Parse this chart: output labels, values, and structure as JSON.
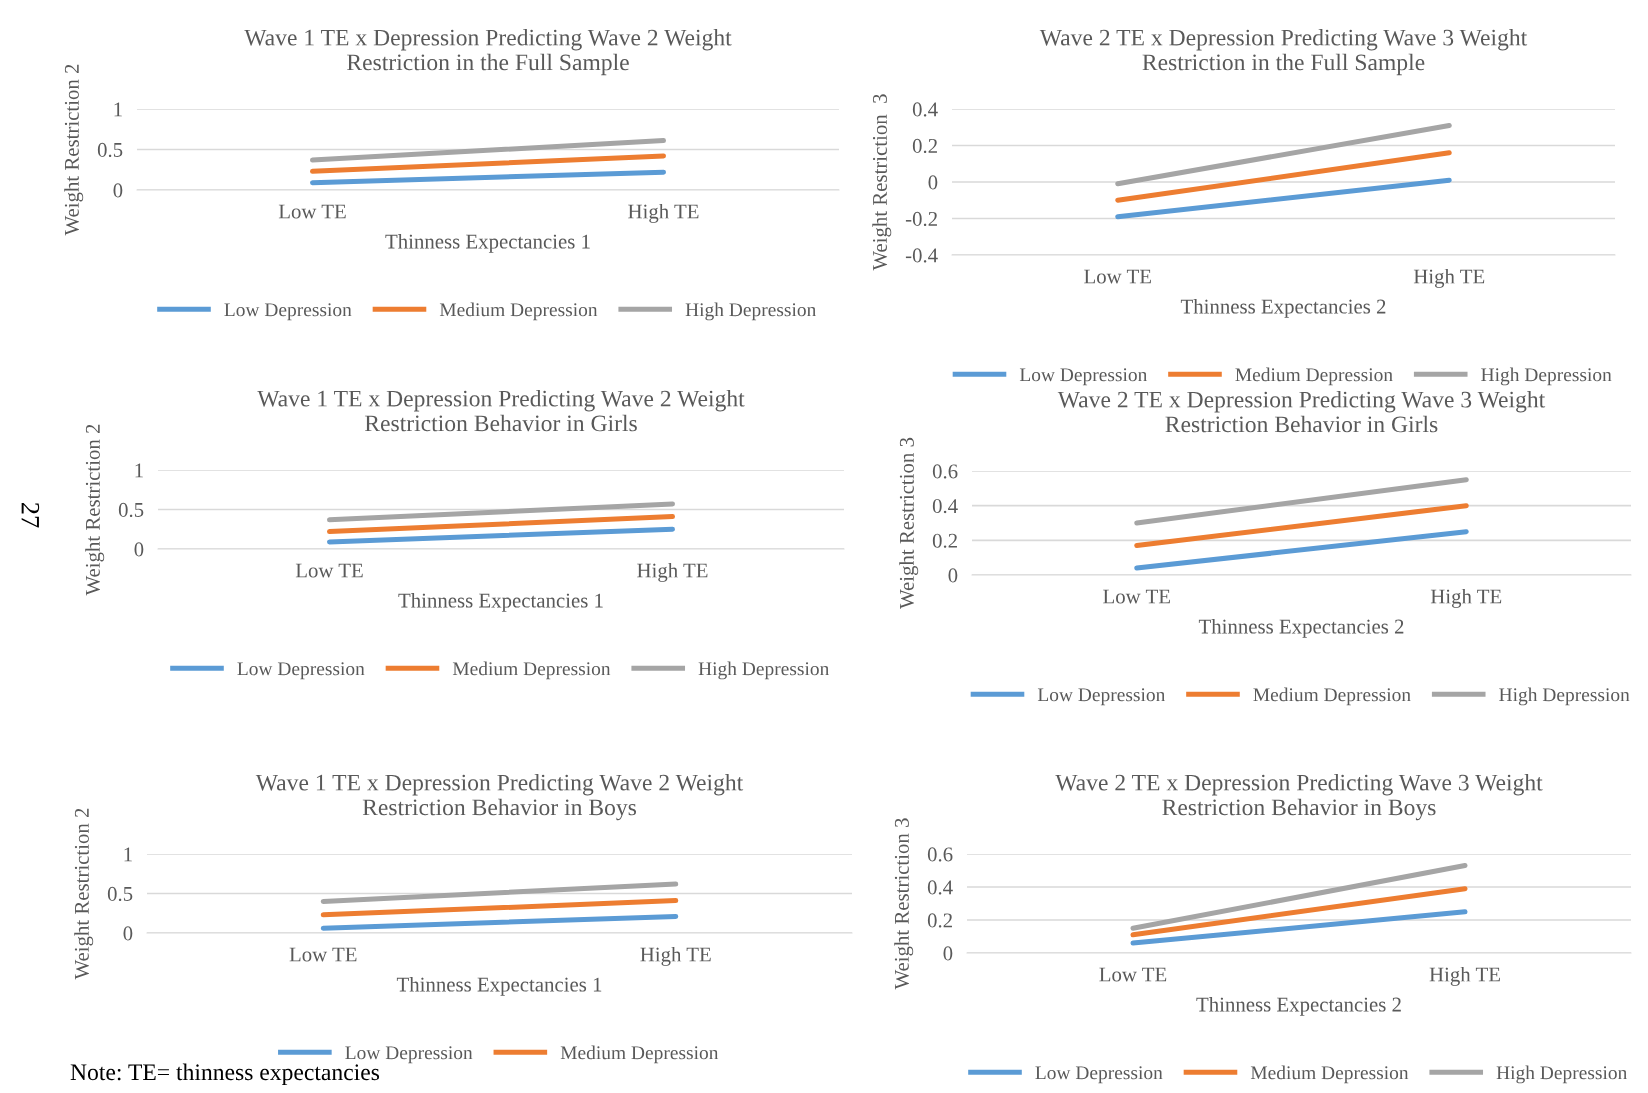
{
  "chart_data": [
    {
      "type": "line",
      "title": "Wave 1 TE x Depression Predicting Wave 2 Weight\nRestriction in the Full Sample",
      "xlabel": "Thinness Expectancies 1",
      "ylabel": "Weight Restriction 2",
      "categories": [
        "Low TE",
        "High TE"
      ],
      "ylim": [
        0,
        1
      ],
      "yticks": [
        0,
        0.5,
        1
      ],
      "grid": "y",
      "legend": "bottom",
      "marker": "none",
      "line_style": "solid",
      "series": [
        {
          "name": "Low Depression",
          "color": "#5b9bd5",
          "values": [
            0.09,
            0.22
          ]
        },
        {
          "name": "Medium Depression",
          "color": "#ed7d31",
          "values": [
            0.23,
            0.42
          ]
        },
        {
          "name": "High Depression",
          "color": "#a5a5a5",
          "values": [
            0.37,
            0.61
          ]
        }
      ]
    },
    {
      "type": "line",
      "title": "Wave 2 TE x Depression Predicting Wave 3 Weight\nRestriction in the Full Sample",
      "xlabel": "Thinness Expectancies 2",
      "ylabel": "Weight Restriction  3",
      "categories": [
        "Low TE",
        "High TE"
      ],
      "ylim": [
        -0.4,
        0.4
      ],
      "yticks": [
        -0.4,
        -0.2,
        0,
        0.2,
        0.4
      ],
      "grid": "y",
      "legend": "bottom",
      "marker": "none",
      "line_style": "solid",
      "series": [
        {
          "name": "Low Depression",
          "color": "#5b9bd5",
          "values": [
            -0.19,
            0.01
          ]
        },
        {
          "name": "Medium Depression",
          "color": "#ed7d31",
          "values": [
            -0.1,
            0.16
          ]
        },
        {
          "name": "High Depression",
          "color": "#a5a5a5",
          "values": [
            -0.01,
            0.31
          ]
        }
      ]
    },
    {
      "type": "line",
      "title": "Wave 1 TE x Depression Predicting Wave 2 Weight\nRestriction Behavior in Girls",
      "xlabel": "Thinness Expectancies 1",
      "ylabel": "Weight Restriction 2",
      "categories": [
        "Low TE",
        "High TE"
      ],
      "ylim": [
        0,
        1
      ],
      "yticks": [
        0,
        0.5,
        1
      ],
      "grid": "y",
      "legend": "bottom",
      "marker": "none",
      "line_style": "solid",
      "annotations": [
        "27"
      ],
      "series": [
        {
          "name": "Low Depression",
          "color": "#5b9bd5",
          "values": [
            0.09,
            0.25
          ]
        },
        {
          "name": "Medium Depression",
          "color": "#ed7d31",
          "values": [
            0.22,
            0.41
          ]
        },
        {
          "name": "High Depression",
          "color": "#a5a5a5",
          "values": [
            0.37,
            0.57
          ]
        }
      ]
    },
    {
      "type": "line",
      "title": "Wave 2 TE x Depression Predicting Wave 3 Weight\nRestriction Behavior in Girls",
      "xlabel": "Thinness Expectancies 2",
      "ylabel": "Weight Restriction 3",
      "categories": [
        "Low TE",
        "High TE"
      ],
      "ylim": [
        0,
        0.6
      ],
      "yticks": [
        0,
        0.2,
        0.4,
        0.6
      ],
      "grid": "y",
      "legend": "bottom",
      "marker": "none",
      "line_style": "solid",
      "series": [
        {
          "name": "Low Depression",
          "color": "#5b9bd5",
          "values": [
            0.04,
            0.25
          ]
        },
        {
          "name": "Medium Depression",
          "color": "#ed7d31",
          "values": [
            0.17,
            0.4
          ]
        },
        {
          "name": "High Depression",
          "color": "#a5a5a5",
          "values": [
            0.3,
            0.55
          ]
        }
      ]
    },
    {
      "type": "line",
      "title": "Wave 1 TE x Depression Predicting Wave 2 Weight\nRestriction Behavior in Boys",
      "xlabel": "Thinness Expectancies 1",
      "ylabel": "Weight Restriction 2",
      "categories": [
        "Low TE",
        "High TE"
      ],
      "ylim": [
        0,
        1
      ],
      "yticks": [
        0,
        0.5,
        1
      ],
      "grid": "y",
      "legend": "bottom",
      "marker": "none",
      "line_style": "solid",
      "annotations": [
        "Note: TE= thinness expectancies"
      ],
      "series": [
        {
          "name": "Low Depression",
          "color": "#5b9bd5",
          "values": [
            0.06,
            0.21
          ]
        },
        {
          "name": "Medium Depression",
          "color": "#ed7d31",
          "values": [
            0.23,
            0.41
          ]
        },
        {
          "color": "#a5a5a5",
          "values": [
            0.4,
            0.62
          ]
        }
      ]
    },
    {
      "type": "line",
      "title": "Wave 2 TE x Depression Predicting Wave 3 Weight\nRestriction Behavior in Boys",
      "xlabel": "Thinness Expectancies 2",
      "ylabel": "Weight Restriction 3",
      "categories": [
        "Low TE",
        "High TE"
      ],
      "ylim": [
        0,
        0.6
      ],
      "yticks": [
        0,
        0.2,
        0.4,
        0.6
      ],
      "grid": "y",
      "legend": "bottom",
      "marker": "none",
      "line_style": "solid",
      "series": [
        {
          "name": "Low Depression",
          "color": "#5b9bd5",
          "values": [
            0.06,
            0.25
          ]
        },
        {
          "name": "Medium Depression",
          "color": "#ed7d31",
          "values": [
            0.11,
            0.39
          ]
        },
        {
          "name": "High Depression",
          "color": "#a5a5a5",
          "values": [
            0.15,
            0.53
          ]
        }
      ]
    }
  ]
}
